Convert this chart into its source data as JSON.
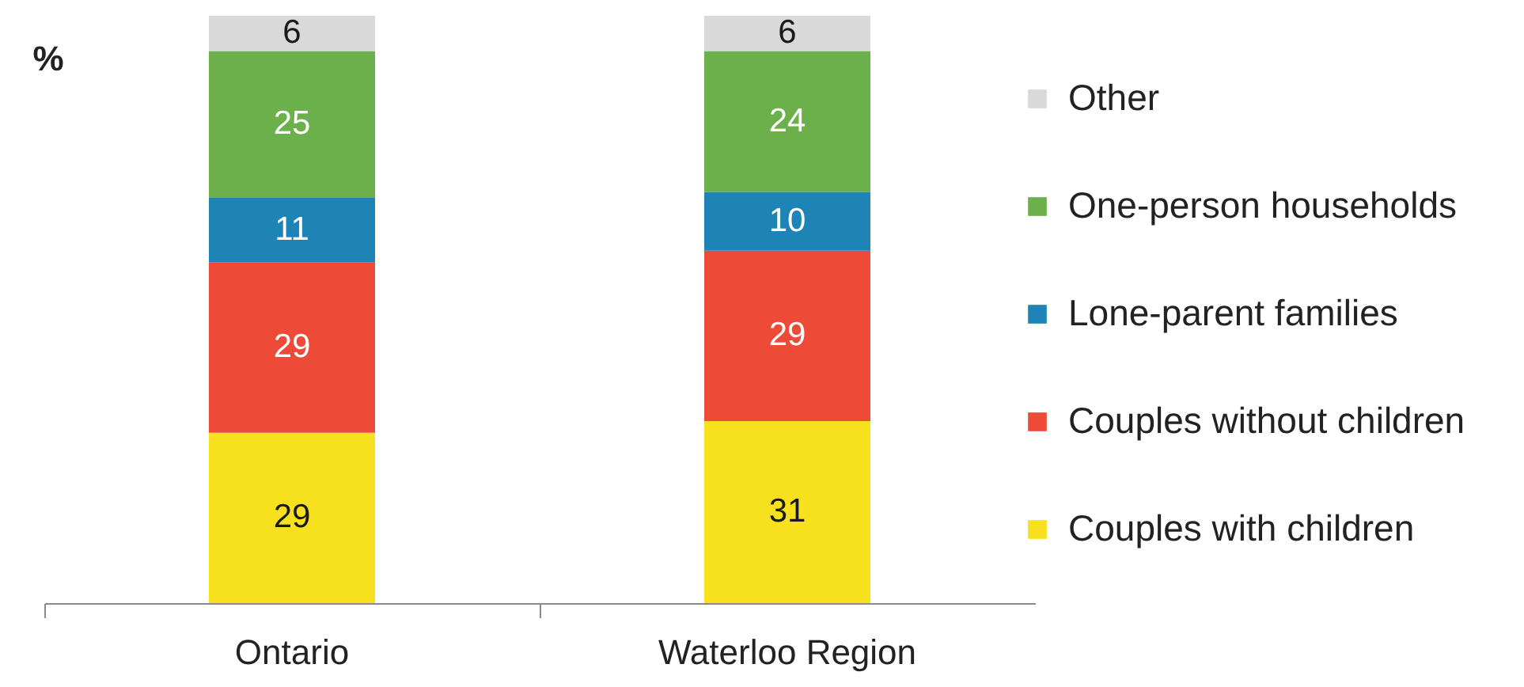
{
  "chart_data": {
    "type": "bar",
    "stacked": true,
    "ylabel": "%",
    "categories": [
      "Ontario",
      "Waterloo Region"
    ],
    "series": [
      {
        "name": "Couples with children",
        "color": "#f7e11f",
        "values": [
          29,
          31
        ]
      },
      {
        "name": "Couples without children",
        "color": "#ee4a38",
        "values": [
          29,
          29
        ]
      },
      {
        "name": "Lone-parent families",
        "color": "#1d84b5",
        "values": [
          11,
          10
        ]
      },
      {
        "name": "One-person households",
        "color": "#6bb04a",
        "values": [
          25,
          24
        ]
      },
      {
        "name": "Other",
        "color": "#d9d9d9",
        "values": [
          6,
          6
        ]
      }
    ],
    "data_labels": true,
    "legend": "right",
    "tick_labels": "x"
  }
}
